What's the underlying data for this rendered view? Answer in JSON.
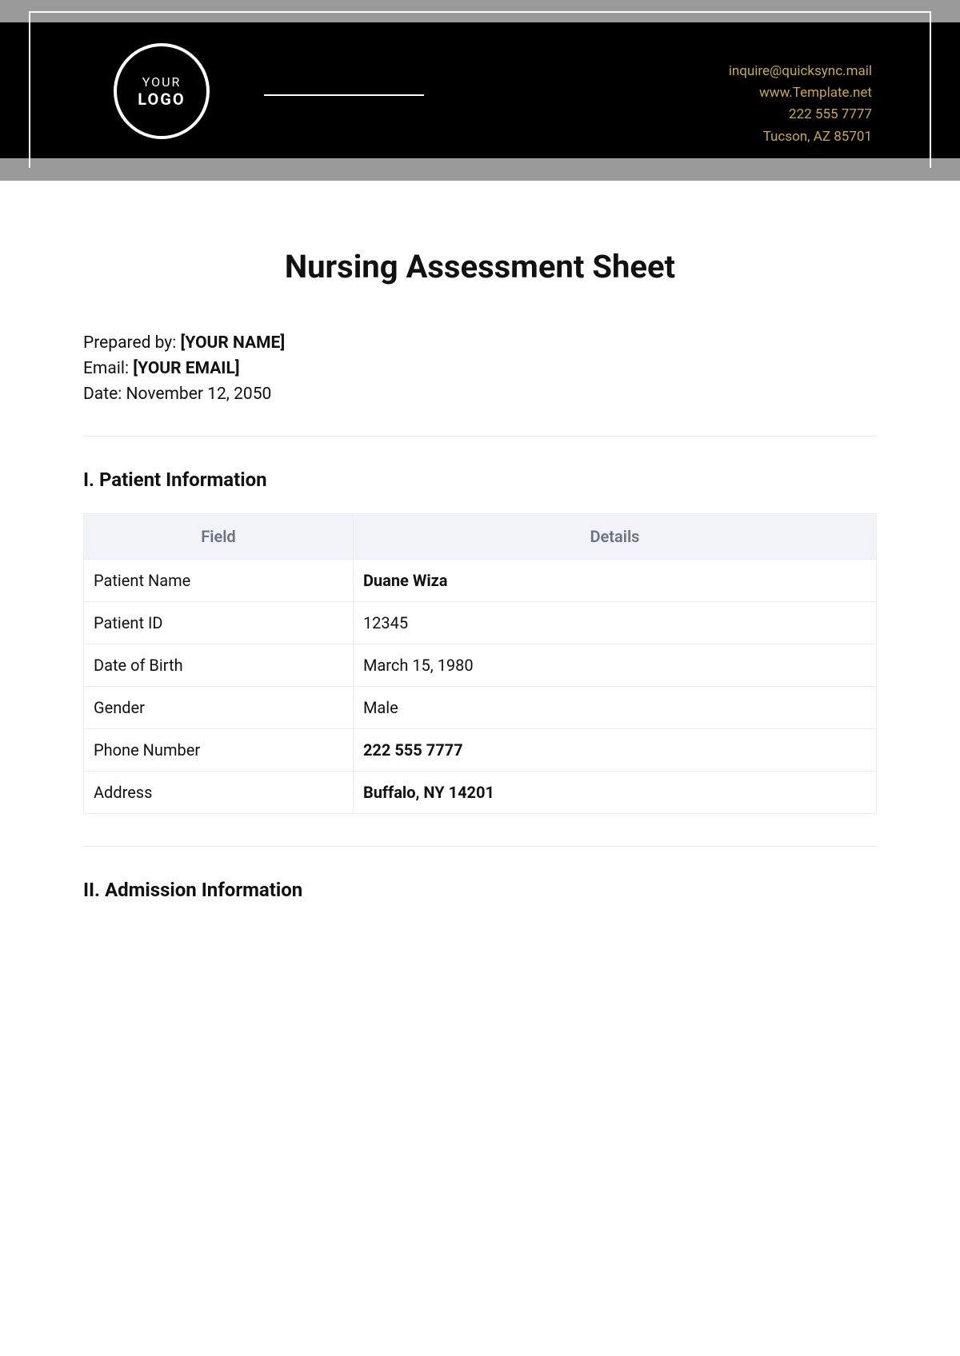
{
  "header": {
    "logo": {
      "line1": "YOUR",
      "line2": "LOGO"
    },
    "contact": {
      "email": "inquire@quicksync.mail",
      "website": "www.Template.net",
      "phone": "222 555 7777",
      "address": "Tucson, AZ 85701"
    },
    "colors": {
      "bg_gray": "#9a9a9a",
      "bg_black": "#000000",
      "frame": "#ffffff",
      "accent_gold": "#c9a848"
    }
  },
  "document": {
    "title": "Nursing Assessment Sheet",
    "prepared_by_label": "Prepared by: ",
    "prepared_by_value": "[YOUR NAME]",
    "email_label": "Email: ",
    "email_value": "[YOUR EMAIL]",
    "date_label": "Date: ",
    "date_value": "November 12, 2050"
  },
  "sections": {
    "patient_info": {
      "heading": "I. Patient Information",
      "columns": {
        "field": "Field",
        "details": "Details"
      },
      "rows": [
        {
          "field": "Patient Name",
          "details": "Duane Wiza",
          "bold": true
        },
        {
          "field": "Patient ID",
          "details": "12345",
          "bold": false
        },
        {
          "field": "Date of Birth",
          "details": "March 15, 1980",
          "bold": false
        },
        {
          "field": "Gender",
          "details": "Male",
          "bold": false
        },
        {
          "field": "Phone Number",
          "details": "222 555 7777",
          "bold": true
        },
        {
          "field": "Address",
          "details": "Buffalo, NY 14201",
          "bold": true
        }
      ]
    },
    "admission_info": {
      "heading": "II. Admission Information"
    }
  },
  "styling": {
    "table_header_bg": "#f2f3f8",
    "table_header_text": "#6b7280",
    "table_border": "#ececec",
    "body_text": "#111111",
    "hr_color": "#eaeaea",
    "title_fontsize": 40,
    "section_heading_fontsize": 24,
    "body_fontsize": 21,
    "table_fontsize": 20
  }
}
